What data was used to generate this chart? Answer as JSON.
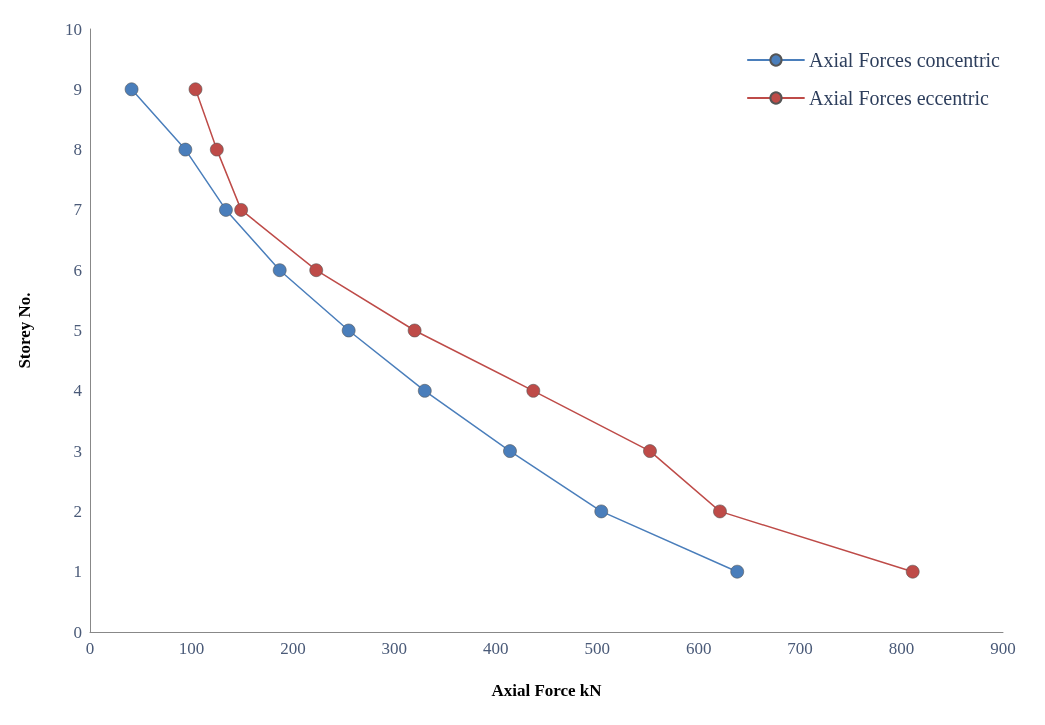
{
  "chart_data": {
    "type": "line",
    "xlabel": "Axial Force kN",
    "ylabel": "Storey No.",
    "series": [
      {
        "name": "Axial Forces concentric",
        "color": "#4a7ebb",
        "x": [
          41,
          94,
          134,
          187,
          255,
          330,
          414,
          504,
          638
        ],
        "values": [
          9,
          8,
          7,
          6,
          5,
          4,
          3,
          2,
          1
        ]
      },
      {
        "name": "Axial Forces eccentric",
        "color": "#be4b48",
        "x": [
          104,
          125,
          149,
          223,
          320,
          437,
          552,
          621,
          811
        ],
        "values": [
          9,
          8,
          7,
          6,
          5,
          4,
          3,
          2,
          1
        ]
      }
    ],
    "xlim": [
      0,
      900
    ],
    "xticks": [
      0,
      100,
      200,
      300,
      400,
      500,
      600,
      700,
      800,
      900
    ],
    "ylim": [
      0,
      10
    ],
    "yticks": [
      0,
      1,
      2,
      3,
      4,
      5,
      6,
      7,
      8,
      9,
      10
    ],
    "grid": false,
    "legend": "top right",
    "marker": "circle",
    "line_style": "solid"
  }
}
